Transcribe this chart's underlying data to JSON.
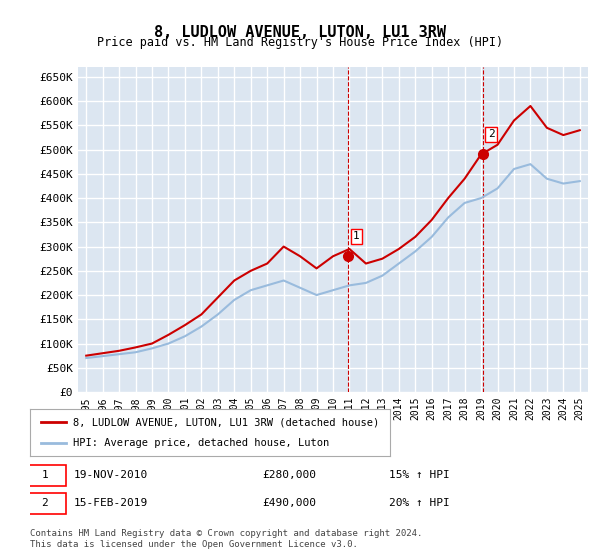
{
  "title": "8, LUDLOW AVENUE, LUTON, LU1 3RW",
  "subtitle": "Price paid vs. HM Land Registry's House Price Index (HPI)",
  "ylabel": "",
  "ylim": [
    0,
    670000
  ],
  "yticks": [
    0,
    50000,
    100000,
    150000,
    200000,
    250000,
    300000,
    350000,
    400000,
    450000,
    500000,
    550000,
    600000,
    650000
  ],
  "ytick_labels": [
    "£0",
    "£50K",
    "£100K",
    "£150K",
    "£200K",
    "£250K",
    "£300K",
    "£350K",
    "£400K",
    "£450K",
    "£500K",
    "£550K",
    "£600K",
    "£650K"
  ],
  "bg_color": "#dce6f1",
  "plot_bg": "#dce6f1",
  "grid_color": "#ffffff",
  "line1_color": "#cc0000",
  "line2_color": "#99bbdd",
  "marker_color": "#cc0000",
  "sale1_year": 2010.9,
  "sale1_price": 280000,
  "sale2_year": 2019.1,
  "sale2_price": 490000,
  "legend_label1": "8, LUDLOW AVENUE, LUTON, LU1 3RW (detached house)",
  "legend_label2": "HPI: Average price, detached house, Luton",
  "annotation1_label": "1",
  "annotation2_label": "2",
  "table_row1": "1    19-NOV-2010    £280,000    15% ↑ HPI",
  "table_row2": "2    15-FEB-2019    £490,000    20% ↑ HPI",
  "footnote": "Contains HM Land Registry data © Crown copyright and database right 2024.\nThis data is licensed under the Open Government Licence v3.0.",
  "hpi_years": [
    1995,
    1996,
    1997,
    1998,
    1999,
    2000,
    2001,
    2002,
    2003,
    2004,
    2005,
    2006,
    2007,
    2008,
    2009,
    2010,
    2011,
    2012,
    2013,
    2014,
    2015,
    2016,
    2017,
    2018,
    2019,
    2020,
    2021,
    2022,
    2023,
    2024,
    2025
  ],
  "hpi_values": [
    70000,
    74000,
    78000,
    82000,
    90000,
    100000,
    115000,
    135000,
    160000,
    190000,
    210000,
    220000,
    230000,
    215000,
    200000,
    210000,
    220000,
    225000,
    240000,
    265000,
    290000,
    320000,
    360000,
    390000,
    400000,
    420000,
    460000,
    470000,
    440000,
    430000,
    435000
  ],
  "price_years": [
    1995,
    1996,
    1997,
    1998,
    1999,
    2000,
    2001,
    2002,
    2003,
    2004,
    2005,
    2006,
    2007,
    2008,
    2009,
    2010,
    2011,
    2012,
    2013,
    2014,
    2015,
    2016,
    2017,
    2018,
    2019,
    2020,
    2021,
    2022,
    2023,
    2024,
    2025
  ],
  "price_values": [
    75000,
    80000,
    85000,
    92000,
    100000,
    118000,
    138000,
    160000,
    195000,
    230000,
    250000,
    265000,
    300000,
    280000,
    255000,
    280000,
    295000,
    265000,
    275000,
    295000,
    320000,
    355000,
    400000,
    440000,
    490000,
    510000,
    560000,
    590000,
    545000,
    530000,
    540000
  ]
}
